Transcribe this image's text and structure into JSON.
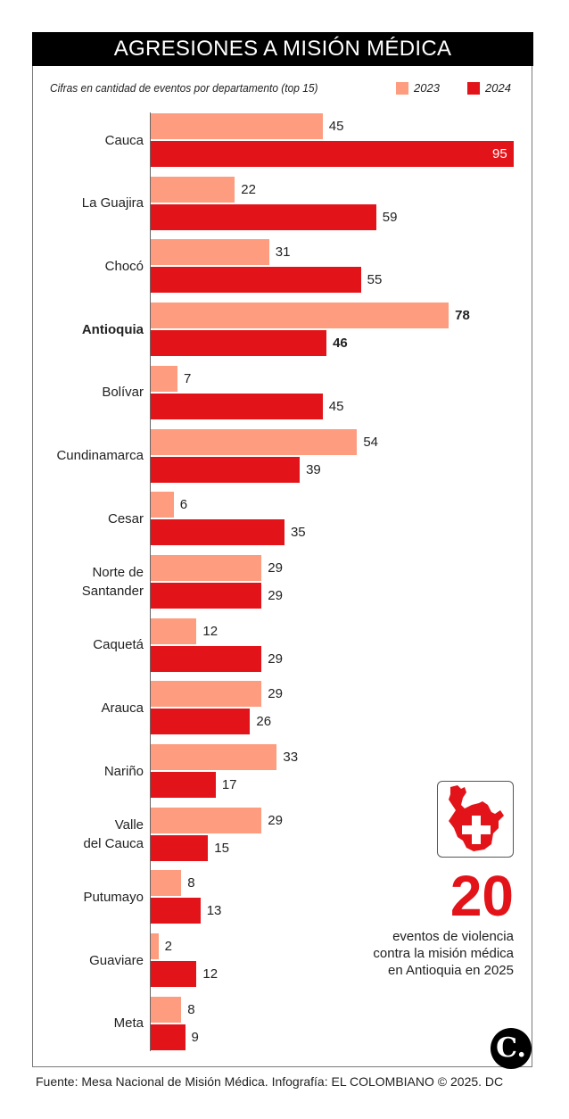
{
  "header": {
    "title": "AGRESIONES A MISIÓN MÉDICA",
    "subtitle": "Cifras en cantidad de eventos por departamento (top 15)"
  },
  "colors": {
    "series_2023": "#fd9c7e",
    "series_2024": "#e31419",
    "title_bg": "#000000"
  },
  "chart_data": {
    "type": "bar",
    "orientation": "horizontal",
    "title": "AGRESIONES A MISIÓN MÉDICA",
    "subtitle": "Cifras en cantidad de eventos por departamento (top 15)",
    "xlabel": "",
    "ylabel": "",
    "xlim": [
      0,
      95
    ],
    "grid": false,
    "legend_position": "top-right",
    "highlight": "Antioquia",
    "categories": [
      "Cauca",
      "La Guajira",
      "Chocó",
      "Antioquia",
      "Bolívar",
      "Cundinamarca",
      "Cesar",
      "Norte de Santander",
      "Caquetá",
      "Arauca",
      "Nariño",
      "Valle del Cauca",
      "Putumayo",
      "Guaviare",
      "Meta"
    ],
    "category_lines": [
      [
        "Cauca"
      ],
      [
        "La Guajira"
      ],
      [
        "Chocó"
      ],
      [
        "Antioquia"
      ],
      [
        "Bolívar"
      ],
      [
        "Cundinamarca"
      ],
      [
        "Cesar"
      ],
      [
        "Norte de",
        "Santander"
      ],
      [
        "Caquetá"
      ],
      [
        "Arauca"
      ],
      [
        "Nariño"
      ],
      [
        "Valle",
        "del Cauca"
      ],
      [
        "Putumayo"
      ],
      [
        "Guaviare"
      ],
      [
        "Meta"
      ]
    ],
    "series": [
      {
        "name": "2023",
        "values": [
          45,
          22,
          31,
          78,
          7,
          54,
          6,
          29,
          12,
          29,
          33,
          29,
          8,
          2,
          8
        ]
      },
      {
        "name": "2024",
        "values": [
          95,
          59,
          55,
          46,
          45,
          39,
          35,
          29,
          29,
          26,
          17,
          15,
          13,
          12,
          9
        ]
      }
    ]
  },
  "callout": {
    "number": "20",
    "lines": [
      "eventos de violencia",
      "contra la misión médica",
      "en Antioquia en 2025"
    ],
    "icon": "antioquia-map-medical-cross-icon"
  },
  "logo": {
    "glyph": "C."
  },
  "footer": {
    "source": "Fuente: Mesa Nacional de Misión Médica. Infografía: EL COLOMBIANO © 2025. DC"
  }
}
